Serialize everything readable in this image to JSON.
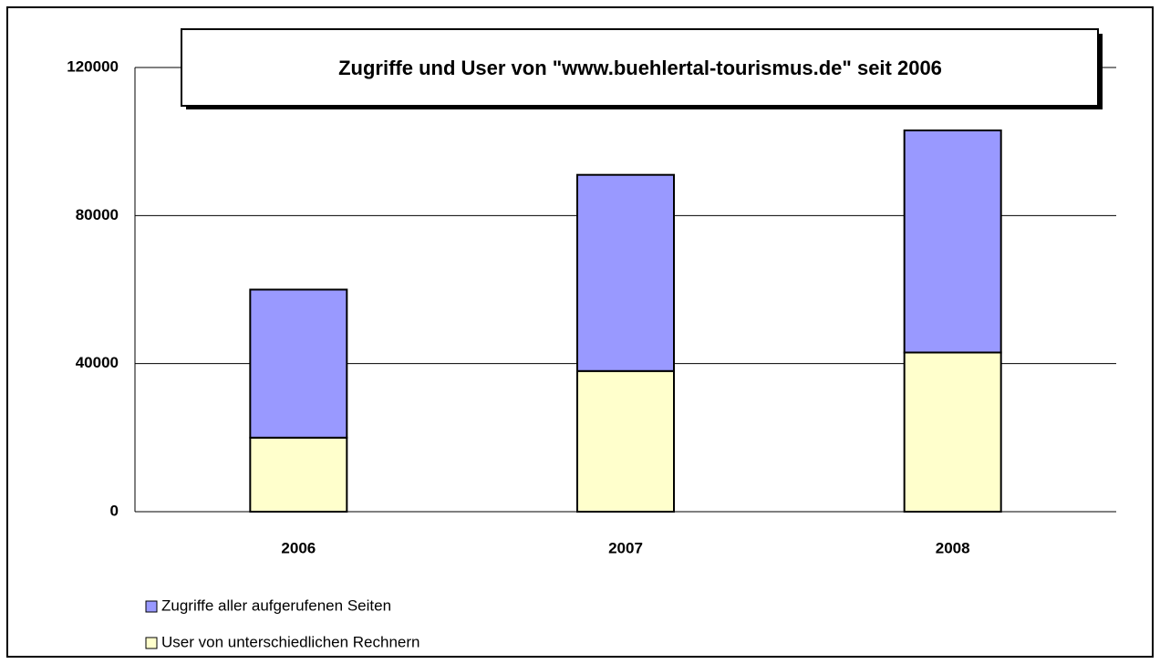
{
  "chart_data": {
    "type": "stacked_bar",
    "title": "Zugriffe und User von \"www.buehlertal-tourismus.de\" seit 2006",
    "categories": [
      "2006",
      "2007",
      "2008"
    ],
    "series": [
      {
        "name": "Zugriffe aller aufgerufenen Seiten",
        "color": "#9999ff",
        "values": [
          40000,
          53000,
          60000
        ]
      },
      {
        "name": "User von unterschiedlichen Rechnern",
        "color": "#ffffcc",
        "values": [
          20000,
          38000,
          43000
        ]
      }
    ],
    "stack_order": [
      1,
      0
    ],
    "ylim": [
      0,
      120000
    ],
    "yticks": [
      0,
      40000,
      80000,
      120000
    ],
    "grid": true
  }
}
